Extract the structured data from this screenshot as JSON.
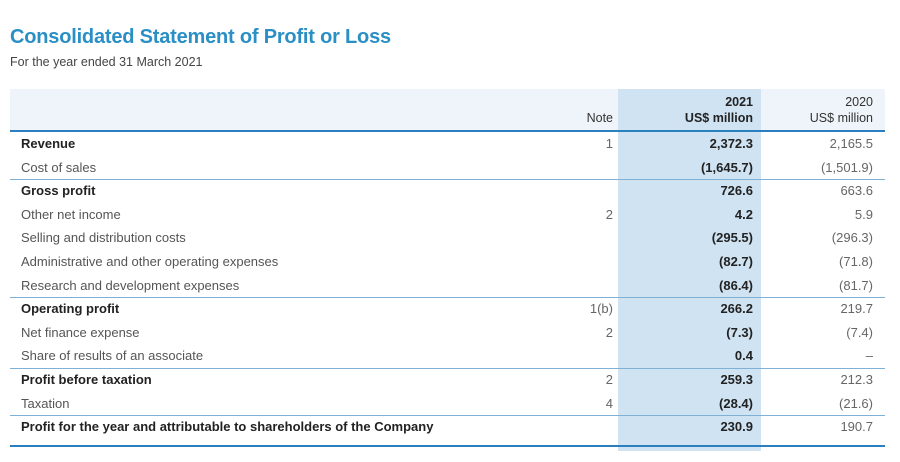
{
  "header": {
    "title": "Consolidated Statement of Profit or Loss",
    "subtitle": "For the year ended 31 March 2021"
  },
  "table": {
    "columns": {
      "note": "Note",
      "y2021_year": "2021",
      "y2021_unit": "US$ million",
      "y2020_year": "2020",
      "y2020_unit": "US$ million"
    },
    "rows": [
      {
        "label": "Revenue",
        "note": "1",
        "v2021": "2,372.3",
        "v2020": "2,165.5",
        "bold": true
      },
      {
        "label": "Cost of sales",
        "note": "",
        "v2021": "(1,645.7)",
        "v2020": "(1,501.9)",
        "bold": false
      },
      {
        "label": "Gross profit",
        "note": "",
        "v2021": "726.6",
        "v2020": "663.6",
        "bold": true
      },
      {
        "label": "Other net income",
        "note": "2",
        "v2021": "4.2",
        "v2020": "5.9",
        "bold": false
      },
      {
        "label": "Selling and distribution costs",
        "note": "",
        "v2021": "(295.5)",
        "v2020": "(296.3)",
        "bold": false
      },
      {
        "label": "Administrative and other operating expenses",
        "note": "",
        "v2021": "(82.7)",
        "v2020": "(71.8)",
        "bold": false
      },
      {
        "label": "Research and development expenses",
        "note": "",
        "v2021": "(86.4)",
        "v2020": "(81.7)",
        "bold": false
      },
      {
        "label": "Operating profit",
        "note": "1(b)",
        "v2021": "266.2",
        "v2020": "219.7",
        "bold": true
      },
      {
        "label": "Net finance expense",
        "note": "2",
        "v2021": "(7.3)",
        "v2020": "(7.4)",
        "bold": false
      },
      {
        "label": "Share of results of an associate",
        "note": "",
        "v2021": "0.4",
        "v2020": "–",
        "bold": false
      },
      {
        "label": "Profit before taxation",
        "note": "2",
        "v2021": "259.3",
        "v2020": "212.3",
        "bold": true
      },
      {
        "label": "Taxation",
        "note": "4",
        "v2021": "(28.4)",
        "v2020": "(21.6)",
        "bold": false
      },
      {
        "label": "Profit for the year and attributable to shareholders of the Company",
        "note": "",
        "v2021": "230.9",
        "v2020": "190.7",
        "bold": true
      }
    ]
  }
}
